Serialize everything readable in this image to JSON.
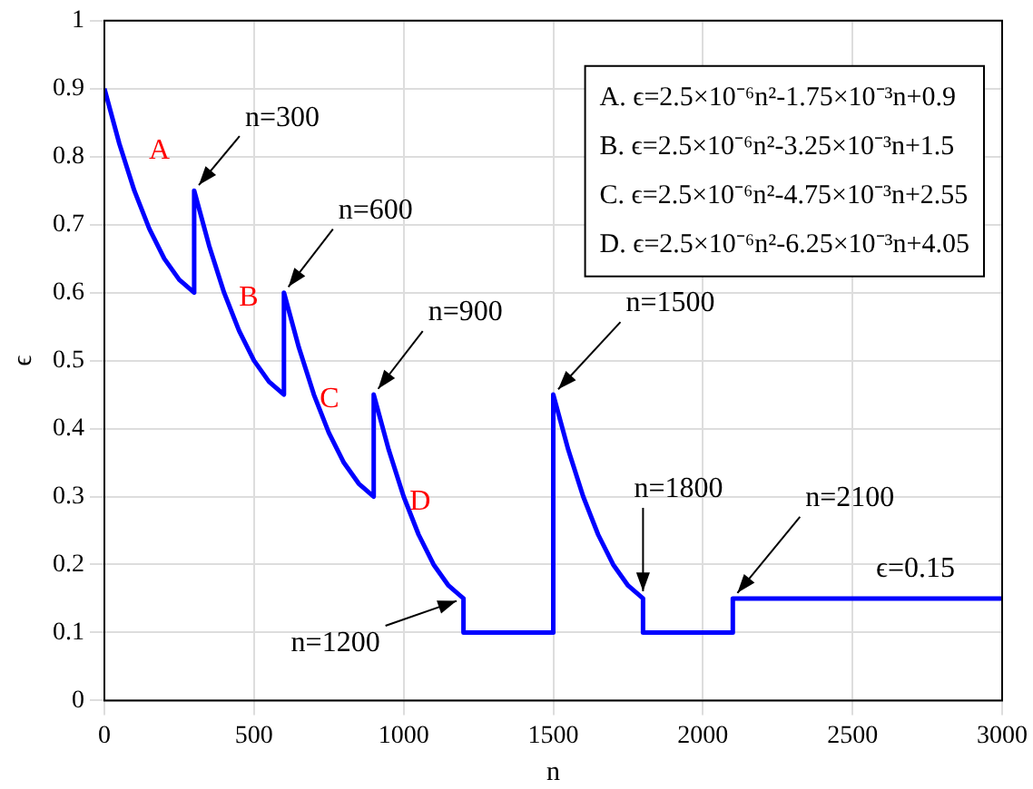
{
  "chart_data": {
    "type": "line",
    "xlabel": "n",
    "ylabel": "ϵ",
    "x": [
      0,
      50,
      100,
      150,
      200,
      250,
      300,
      300,
      350,
      400,
      450,
      500,
      550,
      600,
      600,
      650,
      700,
      750,
      800,
      850,
      900,
      900,
      950,
      1000,
      1050,
      1100,
      1150,
      1200,
      1200,
      1500,
      1500,
      1550,
      1600,
      1650,
      1700,
      1750,
      1800,
      1800,
      2100,
      2100,
      3000
    ],
    "series": [
      {
        "color": "#0000ff",
        "values": [
          0.9,
          0.819,
          0.75,
          0.694,
          0.65,
          0.619,
          0.6,
          0.75,
          0.669,
          0.6,
          0.544,
          0.5,
          0.469,
          0.45,
          0.6,
          0.519,
          0.45,
          0.394,
          0.35,
          0.319,
          0.3,
          0.45,
          0.369,
          0.3,
          0.244,
          0.2,
          0.169,
          0.15,
          0.1,
          0.1,
          0.45,
          0.369,
          0.3,
          0.244,
          0.2,
          0.169,
          0.15,
          0.1,
          0.1,
          0.15,
          0.15
        ]
      }
    ],
    "xlim": [
      0,
      3000
    ],
    "xticks": [
      0,
      500,
      1000,
      1500,
      2000,
      2500,
      3000
    ],
    "ylim": [
      0,
      1
    ],
    "yticks": [
      0,
      0.1,
      0.2,
      0.3,
      0.4,
      0.5,
      0.6,
      0.7,
      0.8,
      0.9,
      1
    ],
    "grid": true,
    "marker": "none",
    "line_style": "solid",
    "annotations": [
      {
        "text": "n=300",
        "x": 300,
        "y": 0.75
      },
      {
        "text": "n=600",
        "x": 600,
        "y": 0.6
      },
      {
        "text": "n=900",
        "x": 900,
        "y": 0.45
      },
      {
        "text": "n=1200",
        "x": 1200,
        "y": 0.15
      },
      {
        "text": "n=1500",
        "x": 1500,
        "y": 0.45
      },
      {
        "text": "n=1800",
        "x": 1800,
        "y": 0.15
      },
      {
        "text": "n=2100",
        "x": 2100,
        "y": 0.15
      },
      {
        "text": "ϵ=0.15",
        "x": 2700,
        "y": 0.15
      },
      {
        "text": "A",
        "x": 100,
        "y": 0.75
      },
      {
        "text": "B",
        "x": 450,
        "y": 0.544
      },
      {
        "text": "C",
        "x": 750,
        "y": 0.394
      },
      {
        "text": "D",
        "x": 1050,
        "y": 0.244
      },
      "A. ϵ=2.5×10⁻⁶n²-1.75×10⁻³n+0.9",
      "B. ϵ=2.5×10⁻⁶n²-3.25×10⁻³n+1.5",
      "C. ϵ=2.5×10⁻⁶n²-4.75×10⁻³n+2.55",
      "D. ϵ=2.5×10⁻⁶n²-6.25×10⁻³n+4.05"
    ]
  }
}
